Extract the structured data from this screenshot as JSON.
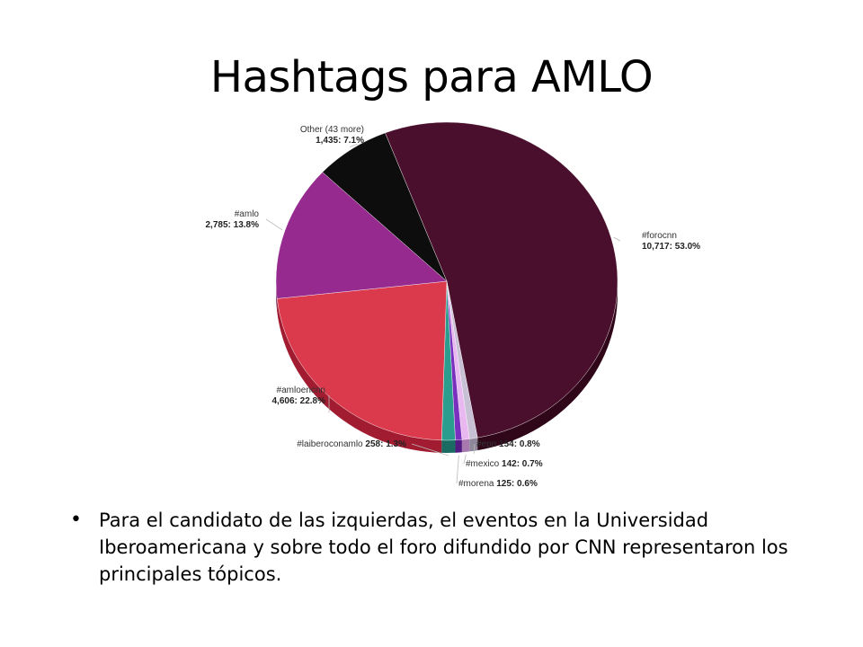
{
  "slide": {
    "title": "Hashtags para AMLO",
    "bullet": "Para el candidato de las izquierdas, el eventos en la Universidad Iberoamericana y sobre todo el foro difundido por CNN representaron los principales tópicos."
  },
  "chart_data": {
    "type": "pie",
    "title": "",
    "slices": [
      {
        "label": "#forocnn",
        "value": 10717,
        "percent": 53.0,
        "value_text": "10,717: 53.0%",
        "color": "#4a0f2c",
        "side": "#300619"
      },
      {
        "label": "#epn",
        "value": 154,
        "percent": 0.8,
        "value_text": "154: 0.8%",
        "color": "#c8c0d4",
        "side": "#8f879a"
      },
      {
        "label": "#mexico",
        "value": 142,
        "percent": 0.7,
        "value_text": "142: 0.7%",
        "color": "#e9b8f0",
        "side": "#a779ae"
      },
      {
        "label": "#morena",
        "value": 125,
        "percent": 0.6,
        "value_text": "125: 0.6%",
        "color": "#7b2fbe",
        "side": "#521a82"
      },
      {
        "label": "#laiberoconamlo",
        "value": 258,
        "percent": 1.3,
        "value_text": "258: 1.3%",
        "color": "#2a9d8f",
        "side": "#1a6b61"
      },
      {
        "label": "#amloencnn",
        "value": 4606,
        "percent": 22.8,
        "value_text": "4,606: 22.8%",
        "color": "#db3a4d",
        "side": "#a11c30"
      },
      {
        "label": "#amlo",
        "value": 2785,
        "percent": 13.8,
        "value_text": "2,785: 13.8%",
        "color": "#962a8f",
        "side": "#641a5f"
      },
      {
        "label": "Other (43 more)",
        "value": 1435,
        "percent": 7.1,
        "value_text": "1,435: 7.1%",
        "color": "#0d0d0d",
        "side": "#000000"
      }
    ]
  }
}
